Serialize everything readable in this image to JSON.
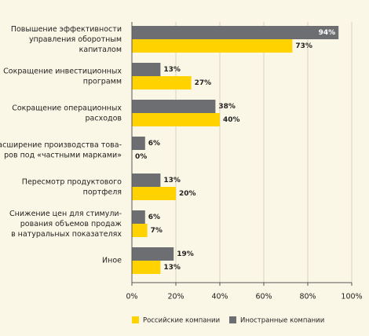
{
  "chart_data": {
    "type": "bar",
    "orientation": "horizontal",
    "categories": [
      "Повышение эффективности\nуправления оборотным\nкапиталом",
      "Сокращение инвестиционных\nпрограмм",
      "Сокращение операционных\nрасходов",
      "Расширение производства това-\nров под «частными марками»",
      "Пересмотр продуктового\nпортфеля",
      "Снижение цен для стимули-\nрования объемов продаж\nв натуральных показателях",
      "Иное"
    ],
    "series": [
      {
        "name": "Российские компании",
        "color": "#ffd200",
        "values": [
          73,
          27,
          40,
          0,
          20,
          7,
          13
        ],
        "value_labels": [
          "73%",
          "27%",
          "40%",
          "0%",
          "20%",
          "7%",
          "13%"
        ]
      },
      {
        "name": "Иностранные компании",
        "color": "#6d6e71",
        "values": [
          94,
          13,
          38,
          6,
          13,
          6,
          19
        ],
        "value_labels": [
          "94%",
          "13%",
          "38%",
          "6%",
          "13%",
          "6%",
          "19%"
        ]
      }
    ],
    "xlim": [
      0,
      100
    ],
    "xticks": [
      {
        "value": 0,
        "label": "0%"
      },
      {
        "value": 20,
        "label": "20%"
      },
      {
        "value": 40,
        "label": "40%"
      },
      {
        "value": 60,
        "label": "60%"
      },
      {
        "value": 80,
        "label": "80%"
      },
      {
        "value": 100,
        "label": "100%"
      }
    ],
    "grid": true
  }
}
